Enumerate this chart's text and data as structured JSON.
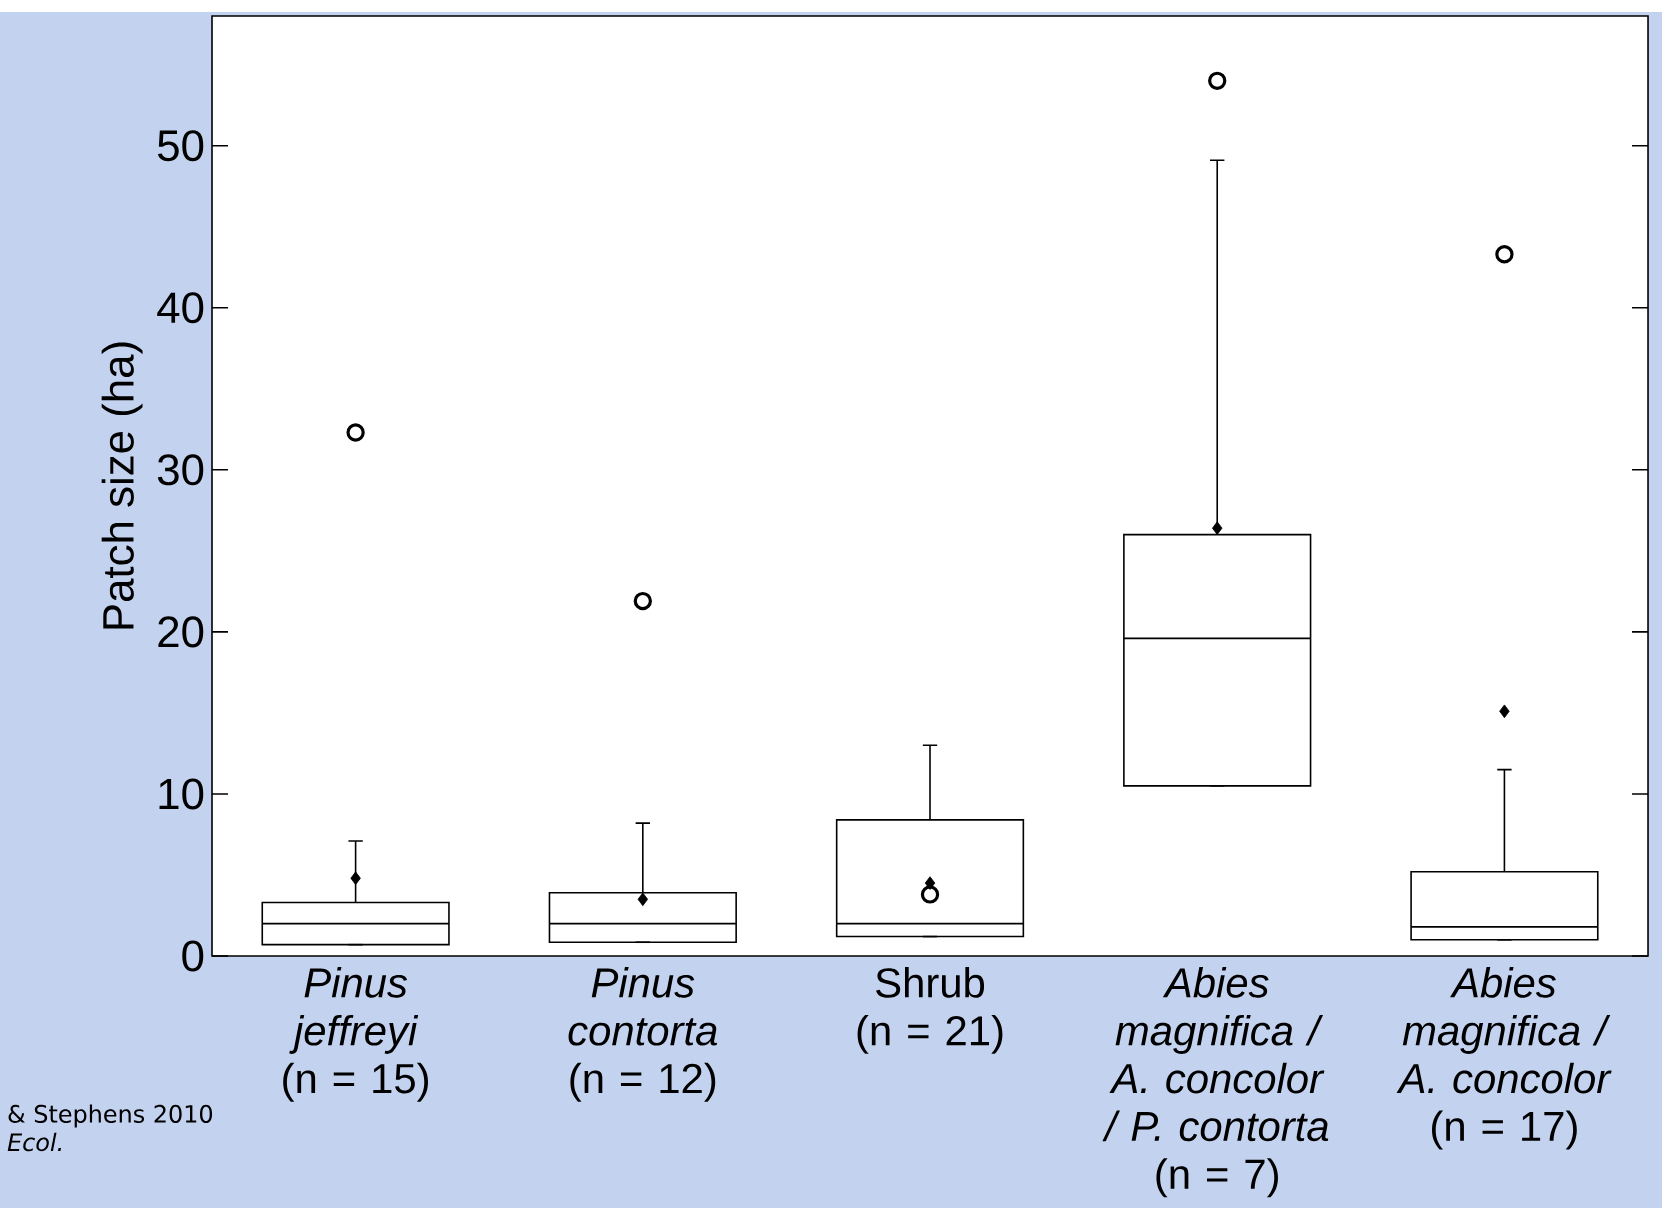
{
  "chart_data": {
    "type": "box",
    "ylabel": "Patch size (ha)",
    "categories": [
      "*Pinus jeffreyi* (n = 15)",
      "*Pinus contorta* (n = 12)",
      "Shrub (n = 21)",
      "*Abies magnifica / A. concolor / P. contorta* (n = 7)",
      "*Abies magnifica / A. concolor* (n = 17)"
    ],
    "boxes": [
      {
        "low": 0.7,
        "q1": 0.7,
        "median": 2.0,
        "q3": 3.3,
        "high": 7.1,
        "mean": 4.8,
        "outliers": [
          32.3
        ]
      },
      {
        "low": 0.85,
        "q1": 0.85,
        "median": 2.0,
        "q3": 3.9,
        "high": 8.2,
        "mean": 3.5,
        "outliers": [
          21.9
        ]
      },
      {
        "low": 1.2,
        "q1": 1.2,
        "median": 2.0,
        "q3": 8.4,
        "high": 13.0,
        "mean": 4.5,
        "outliers": [
          3.8
        ]
      },
      {
        "low": 10.5,
        "q1": 10.5,
        "median": 19.6,
        "q3": 26.0,
        "high": 49.1,
        "mean": 26.4,
        "outliers": [
          54.0
        ]
      },
      {
        "low": 1.0,
        "q1": 1.0,
        "median": 1.8,
        "q3": 5.2,
        "high": 11.5,
        "mean": 15.1,
        "outliers": [
          43.3
        ]
      }
    ],
    "ylim": [
      0,
      58
    ],
    "yticks": [
      0,
      10,
      20,
      30,
      40,
      50
    ],
    "annotations": [
      "& Stephens 2010",
      "*Ecol.*"
    ]
  }
}
